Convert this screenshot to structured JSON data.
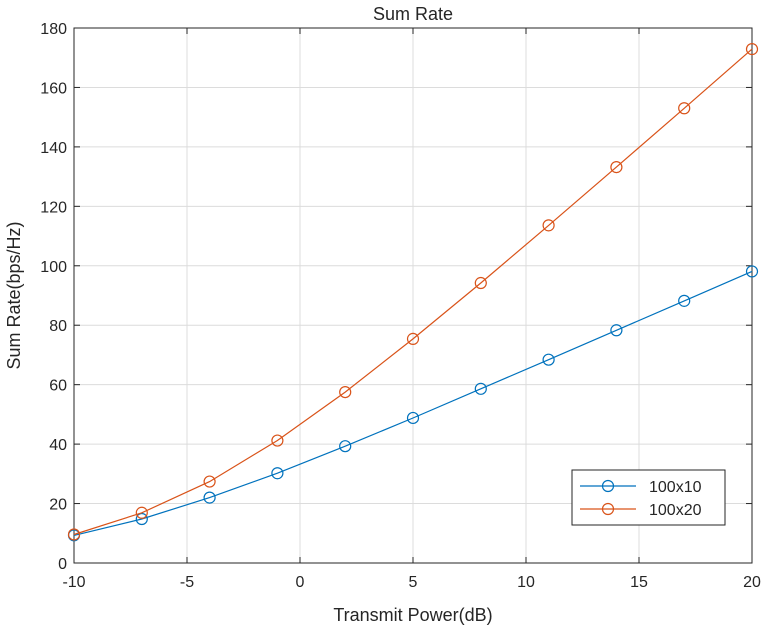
{
  "chart_data": {
    "type": "line",
    "title": "Sum Rate",
    "xlabel": "Transmit Power(dB)",
    "ylabel": "Sum Rate(bps/Hz)",
    "xlim": [
      -10,
      20
    ],
    "ylim": [
      0,
      180
    ],
    "xticks": [
      -10,
      -5,
      0,
      5,
      10,
      15,
      20
    ],
    "yticks": [
      0,
      20,
      40,
      60,
      80,
      100,
      120,
      140,
      160,
      180
    ],
    "grid": true,
    "legend_position": "bottom-right",
    "marker": "circle",
    "x": [
      -10,
      -7,
      -4,
      -1,
      2,
      5,
      8,
      11,
      14,
      17,
      20
    ],
    "series": [
      {
        "name": "100x10",
        "color": "#0072BD",
        "values": [
          9.3,
          14.8,
          22,
          30.2,
          39.3,
          48.8,
          58.6,
          68.4,
          78.3,
          88.2,
          98.1
        ]
      },
      {
        "name": "100x20",
        "color": "#D95319",
        "values": [
          9.6,
          16.9,
          27.4,
          41.2,
          57.5,
          75.4,
          94.2,
          113.6,
          133.2,
          153,
          172.9
        ]
      }
    ]
  }
}
